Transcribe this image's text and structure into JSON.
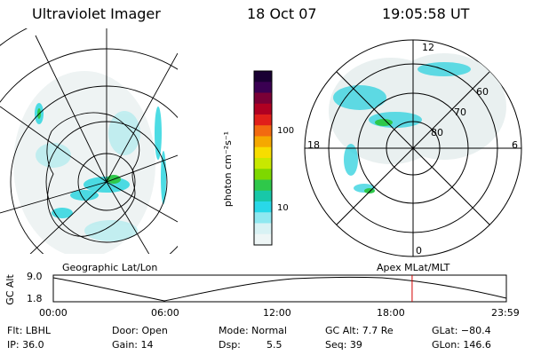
{
  "header": {
    "title": "Ultraviolet Imager",
    "date": "18 Oct 07",
    "time": "19:05:58 UT"
  },
  "left_panel": {
    "caption": "Geographic Lat/Lon"
  },
  "right_panel": {
    "caption": "Apex  MLat/MLT",
    "mlt_labels": {
      "top": "12",
      "left": "18",
      "right": "6",
      "bottom": "0"
    },
    "lat_labels": [
      "60",
      "70",
      "80"
    ]
  },
  "colorbar": {
    "unit_label": "photon cm⁻²s⁻¹",
    "ticks": [
      "100",
      "10"
    ],
    "colors": [
      "#1a0033",
      "#3a0052",
      "#7a0036",
      "#b00022",
      "#e0201a",
      "#f26a10",
      "#f5a800",
      "#f7dd00",
      "#c8e800",
      "#7ed800",
      "#2fc84a",
      "#18c8a8",
      "#29d8e8",
      "#8fe8f0",
      "#d8f2f4",
      "#eef6f6"
    ]
  },
  "altitude_plot": {
    "ylabel": "GC Alt",
    "yticks": [
      "9.0",
      "1.8"
    ],
    "xticks": [
      "00:00",
      "06:00",
      "12:00",
      "18:00",
      "23:59"
    ],
    "current_time_fraction": 0.792
  },
  "footer": {
    "filter": "Flt: LBHL",
    "ip": "IP: 36.0",
    "door": "Door: Open",
    "gain": "Gain: 14",
    "mode": "Mode: Normal",
    "dsp_label": "Dsp:",
    "dsp_value": "5.5",
    "gc_alt": "GC Alt: 7.7 Re",
    "seq": "Seq: 39",
    "glat": "GLat: −80.4",
    "glon": "GLon: 146.6"
  }
}
